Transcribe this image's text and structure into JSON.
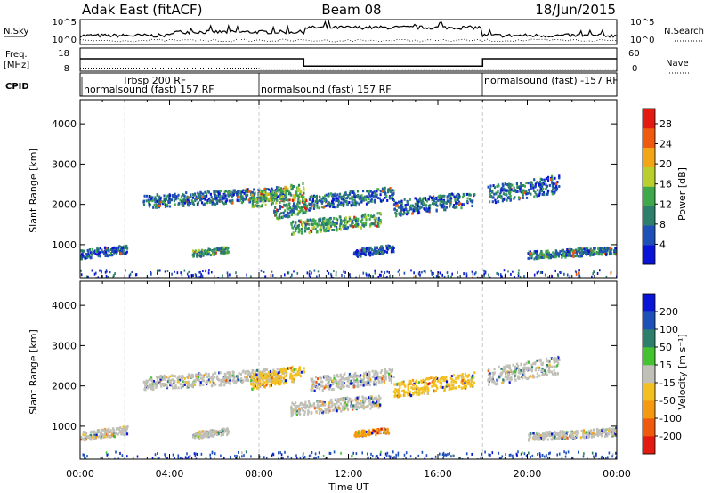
{
  "header": {
    "station": "Adak East (fitACF)",
    "beam": "Beam 08",
    "date": "18/Jun/2015"
  },
  "top_panels": {
    "nsky_label": "N.Sky",
    "nsky_ticks": [
      "10^5",
      "10^0"
    ],
    "nsearch_label": "N.Search",
    "freq_label": "Freq.",
    "freq_unit": "[MHz]",
    "freq_ticks": [
      "18",
      "8"
    ],
    "nave_ticks": [
      "60",
      "0"
    ],
    "nave_label": "Nave",
    "cpid_label": "CPID",
    "cpid_segments": [
      {
        "label": "normalsound (fast) 157 RF",
        "start_hr": 0
      },
      {
        "label": "rbsp 200 RF",
        "start_hr": 2
      },
      {
        "label": "normalsound (fast) 157 RF",
        "start_hr": 8
      },
      {
        "label": "normalsound (fast) -157 RF",
        "start_hr": 18
      }
    ],
    "freq_mhz": [
      {
        "from": 0,
        "to": 10,
        "value": 13.4
      },
      {
        "from": 10,
        "to": 18,
        "value": 10.2
      },
      {
        "from": 18,
        "to": 24,
        "value": 13.4
      }
    ],
    "nave": [
      {
        "from": 0,
        "to": 8,
        "value": 8
      },
      {
        "from": 8,
        "to": 24,
        "value": 5
      }
    ]
  },
  "chart_data": [
    {
      "type": "heatmap",
      "name": "power",
      "ylabel": "Slant Range [km]",
      "xlabel": "Time UT",
      "xlim": [
        0,
        24
      ],
      "ylim": [
        180,
        4600
      ],
      "yticks": [
        "1000",
        "2000",
        "3000",
        "4000"
      ],
      "xticks": [
        "00:00",
        "04:00",
        "08:00",
        "12:00",
        "16:00",
        "20:00",
        "00:00"
      ],
      "colorbar_label": "Power [dB]",
      "colorbar_ticks": [
        "4",
        "8",
        "12",
        "16",
        "20",
        "24",
        "28"
      ],
      "colorbar_range": [
        0,
        31
      ],
      "colors": [
        "#0a14d6",
        "#1e50b8",
        "#2d7f6c",
        "#3ea84a",
        "#b8cf2e",
        "#f2a616",
        "#ef5a0e",
        "#e31a10"
      ],
      "scatter_regions": [
        {
          "t0": 0.0,
          "t1": 2.1,
          "r0": 650,
          "r1": 1050,
          "level": 1.2
        },
        {
          "t0": 5.0,
          "t1": 6.6,
          "r0": 700,
          "r1": 1000,
          "level": 2.6
        },
        {
          "t0": 2.8,
          "t1": 9.2,
          "r0": 1900,
          "r1": 2500,
          "level": 1.5
        },
        {
          "t0": 7.6,
          "t1": 10.0,
          "r0": 1900,
          "r1": 2600,
          "level": 3.2
        },
        {
          "t0": 8.6,
          "t1": 10.2,
          "r0": 1600,
          "r1": 2200,
          "level": 2.2
        },
        {
          "t0": 9.4,
          "t1": 13.4,
          "r0": 1250,
          "r1": 1850,
          "level": 2.6
        },
        {
          "t0": 10.2,
          "t1": 14.0,
          "r0": 1850,
          "r1": 2500,
          "level": 1.4
        },
        {
          "t0": 12.2,
          "t1": 14.0,
          "r0": 700,
          "r1": 1050,
          "level": 1.2
        },
        {
          "t0": 14.0,
          "t1": 17.6,
          "r0": 1700,
          "r1": 2400,
          "level": 1.5
        },
        {
          "t0": 18.2,
          "t1": 21.4,
          "r0": 2000,
          "r1": 2800,
          "level": 1.6
        },
        {
          "t0": 20.0,
          "t1": 24.0,
          "r0": 650,
          "r1": 1000,
          "level": 1.8
        }
      ]
    },
    {
      "type": "heatmap",
      "name": "velocity",
      "ylabel": "Slant Range [km]",
      "xlabel": "Time UT",
      "xlim": [
        0,
        24
      ],
      "ylim": [
        180,
        4600
      ],
      "yticks": [
        "1000",
        "2000",
        "3000",
        "4000"
      ],
      "xticks": [
        "00:00",
        "04:00",
        "08:00",
        "12:00",
        "16:00",
        "20:00",
        "00:00"
      ],
      "colorbar_label": "Velocity [m s⁻¹]",
      "colorbar_ticks": [
        "200",
        "100",
        "50",
        "15",
        "-15",
        "-50",
        "-100",
        "-200"
      ],
      "colors": [
        "#0a14d6",
        "#1e50b8",
        "#2d7f6c",
        "#45c232",
        "#c0c0b8",
        "#f2c020",
        "#f59a10",
        "#ef5a0e",
        "#e31a10"
      ],
      "ground_scatter_color": "#c0c0b8",
      "scatter_regions": [
        {
          "t0": 0.0,
          "t1": 2.1,
          "r0": 650,
          "r1": 1050,
          "level": 4
        },
        {
          "t0": 5.0,
          "t1": 6.6,
          "r0": 700,
          "r1": 1000,
          "level": 4
        },
        {
          "t0": 2.8,
          "t1": 9.2,
          "r0": 1900,
          "r1": 2500,
          "level": 4
        },
        {
          "t0": 7.6,
          "t1": 10.0,
          "r0": 1900,
          "r1": 2600,
          "level": 5
        },
        {
          "t0": 9.4,
          "t1": 13.4,
          "r0": 1250,
          "r1": 1850,
          "level": 4
        },
        {
          "t0": 10.2,
          "t1": 14.0,
          "r0": 1850,
          "r1": 2500,
          "level": 4
        },
        {
          "t0": 12.2,
          "t1": 13.8,
          "r0": 750,
          "r1": 1000,
          "level": 6
        },
        {
          "t0": 14.0,
          "t1": 17.6,
          "r0": 1700,
          "r1": 2400,
          "level": 5
        },
        {
          "t0": 18.2,
          "t1": 21.4,
          "r0": 2000,
          "r1": 2800,
          "level": 4
        },
        {
          "t0": 20.0,
          "t1": 24.0,
          "r0": 650,
          "r1": 1000,
          "level": 4
        }
      ]
    }
  ]
}
